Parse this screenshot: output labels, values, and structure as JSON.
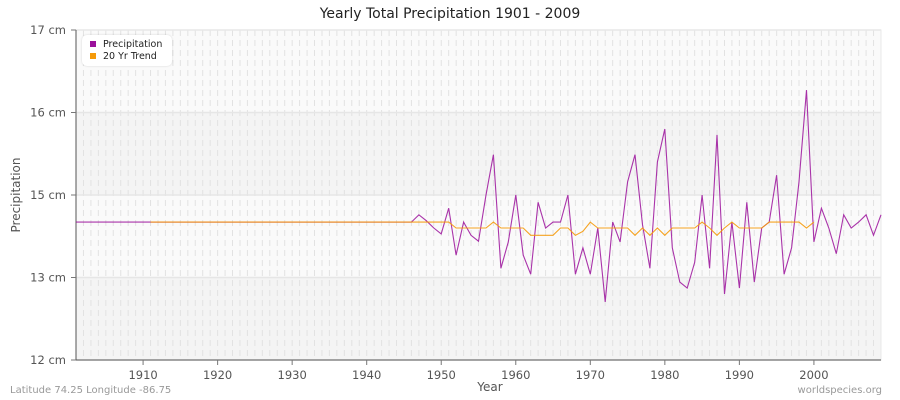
{
  "chart_data": {
    "type": "line",
    "title": "Yearly Total Precipitation 1901 - 2009",
    "xlabel": "Year",
    "ylabel": "Precipitation",
    "xlim": [
      1901,
      2009
    ],
    "ylim": [
      12,
      17
    ],
    "x_ticks": [
      1910,
      1920,
      1930,
      1940,
      1950,
      1960,
      1970,
      1980,
      1990,
      2000
    ],
    "y_ticks": [
      {
        "value": 12,
        "label": "12 cm"
      },
      {
        "value": 13.25,
        "label": "13 cm"
      },
      {
        "value": 14.5,
        "label": "15 cm"
      },
      {
        "value": 15.75,
        "label": "16 cm"
      },
      {
        "value": 17,
        "label": "17 cm"
      }
    ],
    "grid": true,
    "legend_position": "top-left",
    "series": [
      {
        "name": "Precipitation",
        "color": "#9b119b",
        "x_start": 1901,
        "values": [
          14.09,
          14.09,
          14.09,
          14.09,
          14.09,
          14.09,
          14.09,
          14.09,
          14.09,
          14.09,
          14.09,
          14.09,
          14.09,
          14.09,
          14.09,
          14.09,
          14.09,
          14.09,
          14.09,
          14.09,
          14.09,
          14.09,
          14.09,
          14.09,
          14.09,
          14.09,
          14.09,
          14.09,
          14.09,
          14.09,
          14.09,
          14.09,
          14.09,
          14.09,
          14.09,
          14.09,
          14.09,
          14.09,
          14.09,
          14.09,
          14.09,
          14.09,
          14.09,
          14.09,
          14.09,
          14.09,
          14.2,
          14.11,
          14.0,
          13.91,
          14.3,
          13.59,
          14.09,
          13.89,
          13.8,
          14.5,
          15.11,
          13.39,
          13.79,
          14.5,
          13.59,
          13.3,
          14.39,
          14.0,
          14.09,
          14.09,
          14.5,
          13.3,
          13.7,
          13.3,
          14.0,
          12.88,
          14.09,
          13.79,
          14.7,
          15.11,
          14.05,
          13.39,
          15.0,
          15.5,
          13.7,
          13.18,
          13.09,
          13.48,
          14.5,
          13.39,
          15.41,
          13.0,
          14.09,
          13.09,
          14.39,
          13.18,
          14.0,
          14.09,
          14.8,
          13.3,
          13.7,
          14.7,
          16.09,
          13.79,
          14.3,
          14.0,
          13.61,
          14.2,
          14.0,
          14.09,
          14.2,
          13.89,
          14.2
        ]
      },
      {
        "name": "20 Yr Trend",
        "color": "#f59a0a",
        "x_start": 1911,
        "values": [
          14.09,
          14.09,
          14.09,
          14.09,
          14.09,
          14.09,
          14.09,
          14.09,
          14.09,
          14.09,
          14.09,
          14.09,
          14.09,
          14.09,
          14.09,
          14.09,
          14.09,
          14.09,
          14.09,
          14.09,
          14.09,
          14.09,
          14.09,
          14.09,
          14.09,
          14.09,
          14.09,
          14.09,
          14.09,
          14.09,
          14.09,
          14.09,
          14.09,
          14.09,
          14.09,
          14.09,
          14.09,
          14.09,
          14.09,
          14.09,
          14.09,
          14.0,
          14.0,
          14.0,
          14.0,
          14.0,
          14.09,
          14.0,
          14.0,
          14.0,
          14.0,
          13.89,
          13.89,
          13.89,
          13.89,
          14.0,
          14.0,
          13.89,
          13.95,
          14.09,
          14.0,
          14.0,
          14.0,
          14.0,
          14.0,
          13.89,
          14.0,
          13.89,
          14.0,
          13.89,
          14.0,
          14.0,
          14.0,
          14.0,
          14.09,
          14.0,
          13.89,
          14.0,
          14.09,
          14.0,
          14.0,
          14.0,
          14.0,
          14.09,
          14.09,
          14.09,
          14.09,
          14.09,
          14.0,
          14.09
        ]
      }
    ]
  },
  "footer": {
    "location": "Latitude 74.25 Longitude -86.75",
    "source": "worldspecies.org"
  }
}
